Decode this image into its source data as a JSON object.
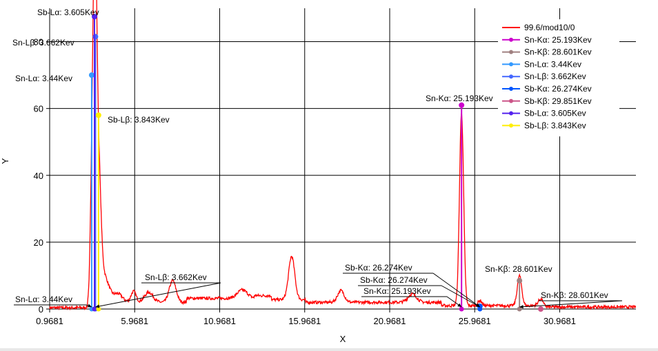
{
  "chart_data": {
    "type": "line",
    "xlabel": "X",
    "ylabel": "Y",
    "xlim": [
      0.9681,
      35.45
    ],
    "ylim": [
      0,
      90
    ],
    "x_ticks": [
      "0.9681",
      "5.9681",
      "10.9681",
      "15.9681",
      "20.9681",
      "25.9681",
      "30.9681"
    ],
    "y_ticks": [
      "0",
      "20",
      "40",
      "60",
      "80"
    ],
    "grid": true,
    "legend_position": "top-right",
    "series": [
      {
        "name": "99.6/mod10/0",
        "color": "#ff0000"
      },
      {
        "name": "Sn-Kα: 25.193Kev",
        "color": "#cc00cc"
      },
      {
        "name": "Sn-Kβ: 28.601Kev",
        "color": "#a08080"
      },
      {
        "name": "Sn-Lα: 3.44Kev",
        "color": "#3399ff"
      },
      {
        "name": "Sn-Lβ: 3.662Kev",
        "color": "#4466ff"
      },
      {
        "name": "Sb-Kα: 26.274Kev",
        "color": "#0055ff"
      },
      {
        "name": "Sb-Kβ: 29.851Kev",
        "color": "#cc5588"
      },
      {
        "name": "Sb-Lα: 3.605Kev",
        "color": "#5522ee"
      },
      {
        "name": "Sb-Lβ: 3.843Kev",
        "color": "#ffee00"
      }
    ],
    "spectrum_peaks": [
      {
        "x": 3.44,
        "height": 30,
        "width": 0.09
      },
      {
        "x": 3.605,
        "height": 62,
        "width": 0.1
      },
      {
        "x": 3.662,
        "height": 42,
        "width": 0.11
      },
      {
        "x": 3.843,
        "height": 35,
        "width": 0.14
      },
      {
        "x": 4.15,
        "height": 8,
        "width": 0.3
      },
      {
        "x": 5.0,
        "height": 2.5,
        "width": 0.25
      },
      {
        "x": 5.9,
        "height": 3.3,
        "width": 0.15
      },
      {
        "x": 6.8,
        "height": 3.0,
        "width": 0.25
      },
      {
        "x": 8.2,
        "height": 6.5,
        "width": 0.2
      },
      {
        "x": 12.3,
        "height": 2.5,
        "width": 0.3
      },
      {
        "x": 15.2,
        "height": 13,
        "width": 0.18
      },
      {
        "x": 18.1,
        "height": 3.5,
        "width": 0.2
      },
      {
        "x": 22.3,
        "height": 2.5,
        "width": 0.25
      },
      {
        "x": 25.193,
        "height": 58,
        "width": 0.12
      },
      {
        "x": 26.274,
        "height": 1.5,
        "width": 0.12
      },
      {
        "x": 28.601,
        "height": 9,
        "width": 0.13
      },
      {
        "x": 29.851,
        "height": 2,
        "width": 0.15
      }
    ],
    "marker_lines": [
      {
        "label": "Sn-Lα: 3.44Kev",
        "x": 3.44,
        "y": 70,
        "color": "#3399ff"
      },
      {
        "label": "Sn-Lβ: 3.662Kev",
        "x": 3.662,
        "y": 81.5,
        "color": "#4466ff"
      },
      {
        "label": "Sb-Lα: 3.605Kev",
        "x": 3.605,
        "y": 87.5,
        "color": "#5522ee"
      },
      {
        "label": "Sb-Lβ: 3.843Kev",
        "x": 3.843,
        "y": 58,
        "color": "#ffee00"
      },
      {
        "label": "Sn-Kα: 25.193Kev",
        "x": 25.193,
        "y": 61,
        "color": "#cc00cc"
      },
      {
        "label": "Sn-Kβ: 28.601Kev",
        "x": 28.601,
        "y": 8.5,
        "color": "#a08080"
      },
      {
        "label": "Sb-Kα: 26.274Kev",
        "x": 26.274,
        "y": 0.8,
        "color": "#0055ff"
      },
      {
        "label": "Sb-Kβ: 29.851Kev",
        "x": 29.851,
        "y": 0,
        "color": "#cc5588"
      }
    ],
    "annotations_top": [
      {
        "text": "Sb-Lα: 3.605Kev"
      },
      {
        "text": "Sn-Lβ: 3.662Kev"
      },
      {
        "text": "Sn-Lα: 3.44Kev"
      },
      {
        "text": "Sb-Lβ: 3.843Kev"
      },
      {
        "text": "Sn-Kα: 25.193Kev"
      },
      {
        "text": "Sn-Kβ: 28.601Kev"
      }
    ],
    "annotations_bottom": [
      {
        "text": "Sn-Lα: 3.44Kev",
        "target_x": 3.44
      },
      {
        "text": "Sn-Lβ: 3.662Kev",
        "target_x": 3.662
      },
      {
        "text": "Sb-Kα: 26.274Kev",
        "target_x": 26.274
      },
      {
        "text": "Sb-Kα: 26.274Kev",
        "target_x": 26.274
      },
      {
        "text": "Sn-Kα: 25.193Kev",
        "target_x": 25.193
      },
      {
        "text": "Sn-Kβ: 28.601Kev",
        "target_x": 28.601
      }
    ]
  }
}
